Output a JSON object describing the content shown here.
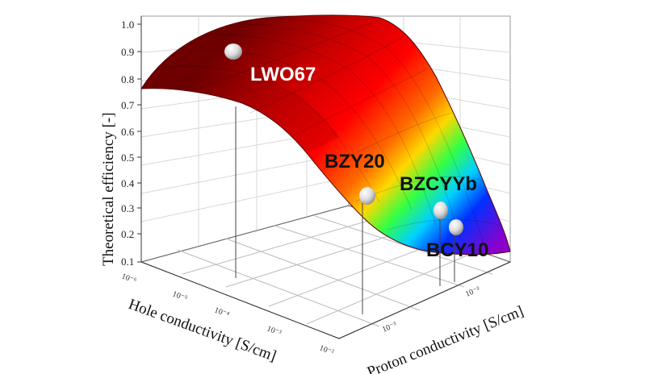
{
  "chart_data": {
    "type": "surface3d",
    "title": "",
    "zlabel": "Theoretical efficiency [-]",
    "xlabel": "Hole conductivity [S/cm]",
    "ylabel": "Proton conductivity [S/cm]",
    "zlim": [
      0.1,
      1.0
    ],
    "zticks": [
      "0.1",
      "0.2",
      "0.3",
      "0.4",
      "0.5",
      "0.6",
      "0.7",
      "0.8",
      "0.9",
      "1.0"
    ],
    "x_ticks": [
      "10⁻⁶",
      "10⁻⁵",
      "10⁻⁴",
      "10⁻³",
      "10⁻²"
    ],
    "y_ticks": [
      "10⁻³",
      "10⁻²"
    ],
    "colormap": [
      "#7a0000",
      "#c80000",
      "#ff0000",
      "#ff8c00",
      "#ffff00",
      "#00ff66",
      "#00aaff",
      "#0000ff",
      "#8800cc"
    ],
    "points": [
      {
        "label": "LWO67",
        "efficiency": 0.85,
        "label_color": "#ffffff"
      },
      {
        "label": "BZY20",
        "efficiency": 0.32,
        "label_color": "#111111"
      },
      {
        "label": "BZCYYb",
        "efficiency": 0.25,
        "label_color": "#111111"
      },
      {
        "label": "BCY10",
        "efficiency": 0.18,
        "label_color": "#111111"
      }
    ]
  }
}
